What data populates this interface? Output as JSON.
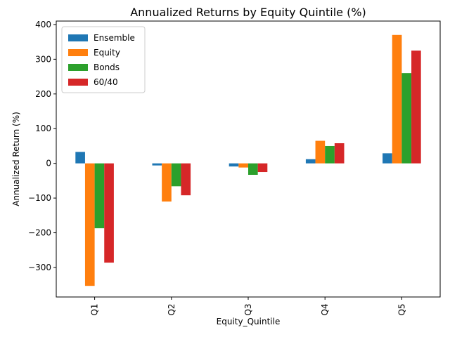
{
  "chart_data": {
    "type": "bar",
    "title": "Annualized Returns by Equity Quintile (%)",
    "xlabel": "Equity_Quintile",
    "ylabel": "Annualized Return (%)",
    "categories": [
      "Q1",
      "Q2",
      "Q3",
      "Q4",
      "Q5"
    ],
    "ylim": [
      -385,
      410
    ],
    "yticks": [
      -300,
      -200,
      -100,
      0,
      100,
      200,
      300,
      400
    ],
    "ytick_labels": [
      "−300",
      "−200",
      "−100",
      "0",
      "100",
      "200",
      "300",
      "400"
    ],
    "legend_position": "top-left",
    "grid": false,
    "series": [
      {
        "name": "Ensemble",
        "color": "#1f77b4",
        "values": [
          33,
          -6,
          -9,
          12,
          29
        ]
      },
      {
        "name": "Equity",
        "color": "#ff7f0e",
        "values": [
          -353,
          -110,
          -12,
          65,
          370
        ]
      },
      {
        "name": "Bonds",
        "color": "#2ca02c",
        "values": [
          -187,
          -66,
          -33,
          50,
          260
        ]
      },
      {
        "name": "60/40",
        "color": "#d62728",
        "values": [
          -286,
          -92,
          -25,
          58,
          325
        ]
      }
    ]
  }
}
